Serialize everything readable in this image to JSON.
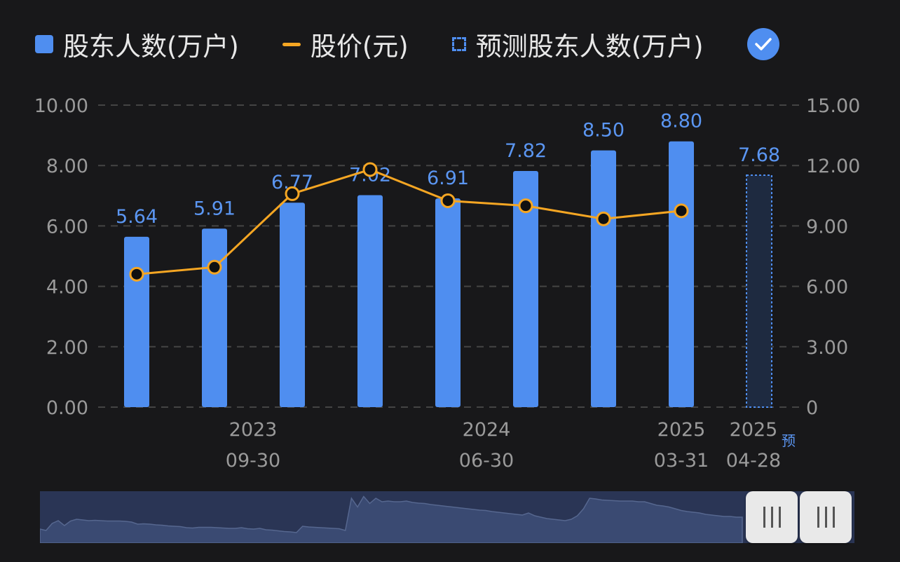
{
  "legend": {
    "holders_label": "股东人数(万户)",
    "price_label": "股价(元)",
    "forecast_label": "预测股东人数(万户)"
  },
  "colors": {
    "bar": "#4f8ef0",
    "line": "#f5a623",
    "forecast_fill": "#1e2a40",
    "value_label": "#5b96f2",
    "axis_text": "#9a9a9a",
    "grid": "#444444",
    "background": "#18181a"
  },
  "chart_data": {
    "type": "bar",
    "categories": [
      "",
      "2023\n09-30",
      "",
      "",
      "2024\n06-30",
      "",
      "",
      "2025\n03-31",
      "2025\n04-28"
    ],
    "x_ticks": [
      {
        "index": 1,
        "year": "2023",
        "date": "09-30"
      },
      {
        "index": 4,
        "year": "2024",
        "date": "06-30"
      },
      {
        "index": 7,
        "year": "2025",
        "date": "03-31"
      },
      {
        "index": 8,
        "year": "2025",
        "date": "04-28",
        "tag": "预"
      }
    ],
    "series": [
      {
        "name": "股东人数(万户)",
        "type": "bar",
        "axis": "left",
        "values": [
          5.64,
          5.91,
          6.77,
          7.02,
          6.91,
          7.82,
          8.5,
          8.8,
          null
        ],
        "labels": [
          "5.64",
          "5.91",
          "6.77",
          "7.02",
          "6.91",
          "7.82",
          "8.50",
          "8.80",
          ""
        ]
      },
      {
        "name": "股价(元)",
        "type": "line",
        "axis": "right",
        "values": [
          6.6,
          6.95,
          10.6,
          11.8,
          10.25,
          10.0,
          9.35,
          9.75,
          null
        ]
      },
      {
        "name": "预测股东人数(万户)",
        "type": "bar-forecast",
        "axis": "left",
        "values": [
          null,
          null,
          null,
          null,
          null,
          null,
          null,
          null,
          7.68
        ],
        "labels": [
          "",
          "",
          "",
          "",
          "",
          "",
          "",
          "",
          "7.68"
        ]
      }
    ],
    "y_left": {
      "min": 0,
      "max": 10,
      "ticks": [
        "0.00",
        "2.00",
        "4.00",
        "6.00",
        "8.00",
        "10.00"
      ]
    },
    "y_right": {
      "min": 0,
      "max": 15,
      "ticks": [
        "0",
        "3.00",
        "6.00",
        "9.00",
        "12.00",
        "15.00"
      ]
    },
    "grid": true,
    "legend_position": "top-left",
    "navigator_series": [
      0.32,
      0.28,
      0.48,
      0.56,
      0.42,
      0.55,
      0.6,
      0.58,
      0.56,
      0.57,
      0.56,
      0.55,
      0.55,
      0.55,
      0.54,
      0.52,
      0.46,
      0.47,
      0.46,
      0.44,
      0.43,
      0.41,
      0.4,
      0.39,
      0.36,
      0.35,
      0.37,
      0.37,
      0.37,
      0.36,
      0.35,
      0.34,
      0.34,
      0.36,
      0.33,
      0.32,
      0.34,
      0.3,
      0.29,
      0.27,
      0.25,
      0.24,
      0.22,
      0.4,
      0.38,
      0.37,
      0.36,
      0.35,
      0.34,
      0.33,
      0.28,
      1.2,
      0.95,
      1.25,
      1.05,
      1.2,
      1.1,
      1.12,
      1.1,
      1.1,
      1.12,
      1.08,
      1.06,
      1.05,
      1.02,
      1.0,
      0.98,
      0.96,
      0.94,
      0.92,
      0.9,
      0.88,
      0.86,
      0.85,
      0.82,
      0.8,
      0.78,
      0.76,
      0.74,
      0.72,
      0.78,
      0.7,
      0.66,
      0.62,
      0.6,
      0.58,
      0.56,
      0.6,
      0.7,
      0.9,
      1.2,
      1.18,
      1.15,
      1.14,
      1.13,
      1.12,
      1.12,
      1.12,
      1.1,
      1.1,
      1.05,
      1.0,
      0.98,
      0.95,
      0.9,
      0.85,
      0.82,
      0.8,
      0.78,
      0.74,
      0.72,
      0.7,
      0.68,
      0.68,
      0.66,
      0.66
    ]
  }
}
